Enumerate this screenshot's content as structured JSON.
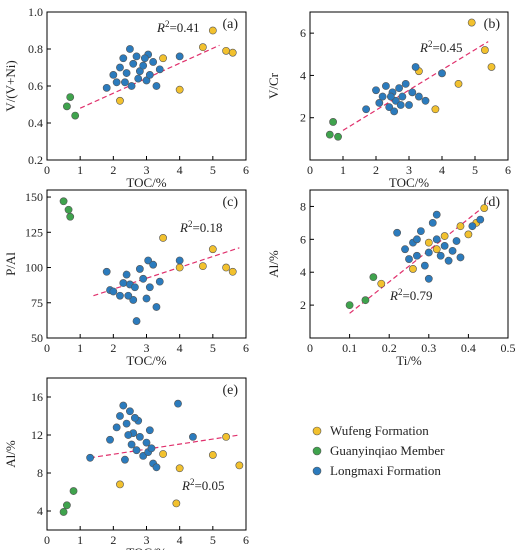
{
  "colors": {
    "Wufeng Formation": "#f2c12e",
    "Guanyinqiao Member": "#3fa34d",
    "Longmaxi Formation": "#2b7bbd",
    "trend": "#e0306c"
  },
  "legend": {
    "items": [
      "Wufeng Formation",
      "Guanyinqiao Member",
      "Longmaxi Formation"
    ]
  },
  "chart_data": [
    {
      "type": "scatter",
      "panel": "(a)",
      "xlabel": "TOC/%",
      "ylabel": "V/(V+Ni)",
      "xlim": [
        0,
        6
      ],
      "ylim": [
        0.2,
        1.0
      ],
      "xticks": [
        "0",
        "1",
        "2",
        "3",
        "4",
        "5",
        "6"
      ],
      "yticks": [
        "0.2",
        "0.4",
        "0.6",
        "0.8",
        "1.0"
      ],
      "r2": {
        "label": "R",
        "sup": "2",
        "value": "=0.41"
      },
      "trend": [
        [
          1.0,
          0.48
        ],
        [
          5.2,
          0.82
        ]
      ],
      "series": [
        {
          "name": "Wufeng Formation",
          "points": [
            [
              2.2,
              0.52
            ],
            [
              3.5,
              0.75
            ],
            [
              4.0,
              0.58
            ],
            [
              4.7,
              0.81
            ],
            [
              5.0,
              0.9
            ],
            [
              5.4,
              0.79
            ],
            [
              5.6,
              0.78
            ]
          ]
        },
        {
          "name": "Guanyinqiao Member",
          "points": [
            [
              0.6,
              0.49
            ],
            [
              0.7,
              0.54
            ],
            [
              0.85,
              0.44
            ]
          ]
        },
        {
          "name": "Longmaxi Formation",
          "points": [
            [
              1.8,
              0.59
            ],
            [
              2.0,
              0.66
            ],
            [
              2.1,
              0.62
            ],
            [
              2.2,
              0.7
            ],
            [
              2.3,
              0.75
            ],
            [
              2.4,
              0.67
            ],
            [
              2.5,
              0.8
            ],
            [
              2.55,
              0.6
            ],
            [
              2.6,
              0.72
            ],
            [
              2.7,
              0.76
            ],
            [
              2.75,
              0.64
            ],
            [
              2.8,
              0.68
            ],
            [
              2.9,
              0.71
            ],
            [
              3.0,
              0.63
            ],
            [
              3.05,
              0.77
            ],
            [
              3.1,
              0.66
            ],
            [
              3.2,
              0.73
            ],
            [
              3.3,
              0.6
            ],
            [
              3.4,
              0.69
            ],
            [
              2.35,
              0.62
            ],
            [
              2.95,
              0.75
            ],
            [
              4.0,
              0.76
            ]
          ]
        }
      ]
    },
    {
      "type": "scatter",
      "panel": "(b)",
      "xlabel": "TOC/%",
      "ylabel": "V/Cr",
      "xlim": [
        0,
        6
      ],
      "ylim": [
        0,
        7
      ],
      "xticks": [
        "0",
        "1",
        "2",
        "3",
        "4",
        "5",
        "6"
      ],
      "yticks": [
        "2",
        "4",
        "6"
      ],
      "yticks_values": [
        2,
        4,
        6
      ],
      "r2": {
        "label": "R",
        "sup": "2",
        "value": "=0.45"
      },
      "trend": [
        [
          1.0,
          1.4
        ],
        [
          5.4,
          5.6
        ]
      ],
      "series": [
        {
          "name": "Wufeng Formation",
          "points": [
            [
              3.3,
              4.2
            ],
            [
              3.8,
              2.4
            ],
            [
              4.5,
              3.6
            ],
            [
              4.9,
              6.5
            ],
            [
              5.3,
              5.2
            ],
            [
              5.5,
              4.4
            ]
          ]
        },
        {
          "name": "Guanyinqiao Member",
          "points": [
            [
              0.6,
              1.2
            ],
            [
              0.7,
              1.8
            ],
            [
              0.85,
              1.1
            ]
          ]
        },
        {
          "name": "Longmaxi Formation",
          "points": [
            [
              1.7,
              2.4
            ],
            [
              2.0,
              3.3
            ],
            [
              2.1,
              2.7
            ],
            [
              2.2,
              3.0
            ],
            [
              2.3,
              3.5
            ],
            [
              2.4,
              2.5
            ],
            [
              2.5,
              3.2
            ],
            [
              2.6,
              2.8
            ],
            [
              2.7,
              3.4
            ],
            [
              2.8,
              3.0
            ],
            [
              2.9,
              3.6
            ],
            [
              3.0,
              2.6
            ],
            [
              3.1,
              3.2
            ],
            [
              3.2,
              4.4
            ],
            [
              3.3,
              3.0
            ],
            [
              3.5,
              2.8
            ],
            [
              2.55,
              2.3
            ],
            [
              2.45,
              3.0
            ],
            [
              2.75,
              2.6
            ],
            [
              4.0,
              4.1
            ]
          ]
        }
      ]
    },
    {
      "type": "scatter",
      "panel": "(c)",
      "xlabel": "TOC/%",
      "ylabel": "P/Al",
      "xlim": [
        0,
        6
      ],
      "ylim": [
        50,
        155
      ],
      "xticks": [
        "0",
        "1",
        "2",
        "3",
        "4",
        "5",
        "6"
      ],
      "yticks": [
        "50",
        "75",
        "100",
        "125",
        "150"
      ],
      "yticks_values": [
        50,
        75,
        100,
        125,
        150
      ],
      "r2": {
        "label": "R",
        "sup": "2",
        "value": "=0.18"
      },
      "trend": [
        [
          1.4,
          80
        ],
        [
          5.8,
          114
        ]
      ],
      "series": [
        {
          "name": "Wufeng Formation",
          "points": [
            [
              3.5,
              121
            ],
            [
              4.0,
              100
            ],
            [
              4.7,
              101
            ],
            [
              5.0,
              113
            ],
            [
              5.4,
              100
            ],
            [
              5.6,
              97
            ]
          ]
        },
        {
          "name": "Guanyinqiao Member",
          "points": [
            [
              0.5,
              147
            ],
            [
              0.65,
              141
            ],
            [
              0.7,
              136
            ]
          ]
        },
        {
          "name": "Longmaxi Formation",
          "points": [
            [
              1.8,
              97
            ],
            [
              1.9,
              84
            ],
            [
              2.0,
              83
            ],
            [
              2.2,
              80
            ],
            [
              2.3,
              89
            ],
            [
              2.4,
              95
            ],
            [
              2.5,
              88
            ],
            [
              2.6,
              77
            ],
            [
              2.7,
              62
            ],
            [
              2.8,
              99
            ],
            [
              2.9,
              92
            ],
            [
              3.0,
              78
            ],
            [
              3.05,
              105
            ],
            [
              3.1,
              86
            ],
            [
              3.2,
              102
            ],
            [
              3.4,
              90
            ],
            [
              3.3,
              72
            ],
            [
              2.45,
              80
            ],
            [
              2.65,
              86
            ],
            [
              4.0,
              105
            ]
          ]
        }
      ]
    },
    {
      "type": "scatter",
      "panel": "(d)",
      "xlabel": "Ti/%",
      "ylabel": "Al/%",
      "xlim": [
        0,
        0.5
      ],
      "ylim": [
        0,
        9
      ],
      "xticks": [
        "0",
        "0.1",
        "0.2",
        "0.3",
        "0.4",
        "0.5"
      ],
      "xticks_values": [
        0,
        0.1,
        0.2,
        0.3,
        0.4,
        0.5
      ],
      "yticks": [
        "2",
        "4",
        "6",
        "8"
      ],
      "yticks_values": [
        2,
        4,
        6,
        8
      ],
      "r2": {
        "label": "R",
        "sup": "2",
        "value": "=0.79"
      },
      "trend": [
        [
          0.1,
          1.5
        ],
        [
          0.45,
          8.2
        ]
      ],
      "series": [
        {
          "name": "Wufeng Formation",
          "points": [
            [
              0.18,
              3.3
            ],
            [
              0.26,
              4.2
            ],
            [
              0.3,
              5.8
            ],
            [
              0.32,
              5.4
            ],
            [
              0.34,
              6.2
            ],
            [
              0.38,
              6.8
            ],
            [
              0.4,
              6.3
            ],
            [
              0.42,
              7.0
            ],
            [
              0.44,
              7.9
            ]
          ]
        },
        {
          "name": "Guanyinqiao Member",
          "points": [
            [
              0.1,
              2.0
            ],
            [
              0.14,
              2.3
            ],
            [
              0.16,
              3.7
            ]
          ]
        },
        {
          "name": "Longmaxi Formation",
          "points": [
            [
              0.22,
              6.4
            ],
            [
              0.24,
              5.4
            ],
            [
              0.25,
              4.8
            ],
            [
              0.26,
              5.8
            ],
            [
              0.27,
              5.0
            ],
            [
              0.28,
              6.5
            ],
            [
              0.29,
              4.4
            ],
            [
              0.3,
              5.2
            ],
            [
              0.31,
              7.0
            ],
            [
              0.32,
              6.0
            ],
            [
              0.32,
              7.5
            ],
            [
              0.33,
              5.0
            ],
            [
              0.34,
              5.6
            ],
            [
              0.35,
              4.7
            ],
            [
              0.36,
              5.3
            ],
            [
              0.37,
              5.9
            ],
            [
              0.38,
              4.9
            ],
            [
              0.3,
              3.6
            ],
            [
              0.41,
              6.8
            ],
            [
              0.43,
              7.2
            ],
            [
              0.27,
              6.0
            ]
          ]
        }
      ]
    },
    {
      "type": "scatter",
      "panel": "(e)",
      "xlabel": "TOC/%",
      "ylabel": "Al/%",
      "xlim": [
        0,
        6
      ],
      "ylim": [
        2,
        18
      ],
      "xticks": [
        "0",
        "1",
        "2",
        "3",
        "4",
        "5",
        "6"
      ],
      "yticks": [
        "4",
        "8",
        "12",
        "16"
      ],
      "yticks_values": [
        4,
        8,
        12,
        16
      ],
      "r2": {
        "label": "R",
        "sup": "2",
        "value": "=0.05"
      },
      "trend": [
        [
          1.3,
          9.6
        ],
        [
          5.8,
          12.0
        ]
      ],
      "series": [
        {
          "name": "Wufeng Formation",
          "points": [
            [
              2.2,
              6.8
            ],
            [
              3.5,
              10.0
            ],
            [
              3.9,
              4.8
            ],
            [
              4.0,
              8.5
            ],
            [
              5.0,
              9.9
            ],
            [
              5.4,
              11.8
            ],
            [
              5.8,
              8.8
            ]
          ]
        },
        {
          "name": "Guanyinqiao Member",
          "points": [
            [
              0.5,
              3.9
            ],
            [
              0.6,
              4.6
            ],
            [
              0.8,
              6.1
            ]
          ]
        },
        {
          "name": "Longmaxi Formation",
          "points": [
            [
              1.3,
              9.6
            ],
            [
              1.9,
              11.5
            ],
            [
              2.1,
              12.8
            ],
            [
              2.2,
              14.0
            ],
            [
              2.3,
              15.1
            ],
            [
              2.4,
              13.2
            ],
            [
              2.5,
              14.5
            ],
            [
              2.55,
              11.0
            ],
            [
              2.6,
              12.2
            ],
            [
              2.7,
              10.4
            ],
            [
              2.75,
              13.5
            ],
            [
              2.8,
              11.8
            ],
            [
              2.9,
              9.8
            ],
            [
              3.0,
              11.2
            ],
            [
              3.05,
              10.2
            ],
            [
              3.1,
              12.5
            ],
            [
              3.2,
              9.0
            ],
            [
              3.3,
              8.6
            ],
            [
              2.35,
              9.4
            ],
            [
              2.65,
              13.8
            ],
            [
              3.95,
              15.3
            ],
            [
              4.4,
              11.8
            ],
            [
              3.15,
              10.6
            ],
            [
              2.45,
              12.0
            ]
          ]
        }
      ]
    }
  ]
}
